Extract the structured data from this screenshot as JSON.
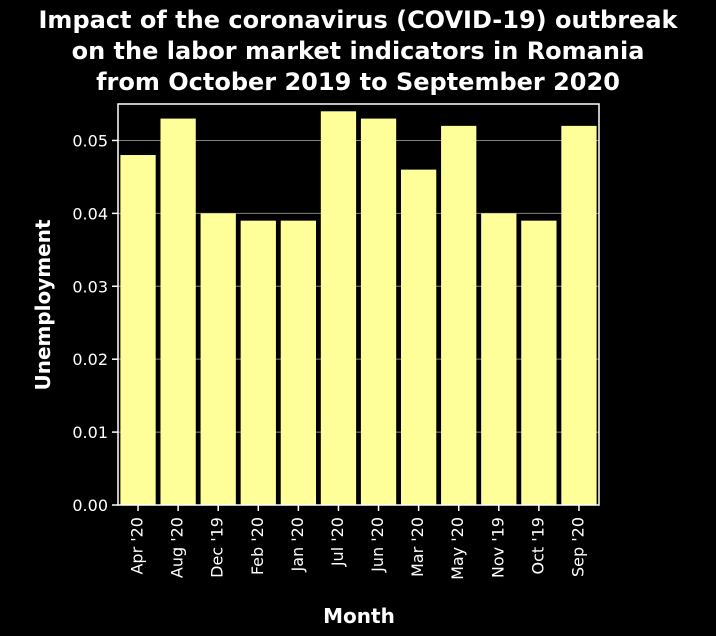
{
  "chart_data": {
    "type": "bar",
    "title_lines": [
      "Impact of the coronavirus (COVID-19) outbreak",
      "on the labor market indicators in Romania",
      "from October 2019 to September 2020"
    ],
    "xlabel": "Month",
    "ylabel": "Unemployment",
    "categories": [
      "Apr '20",
      "Aug '20",
      "Dec '19",
      "Feb '20",
      "Jan '20",
      "Jul '20",
      "Jun '20",
      "Mar '20",
      "May '20",
      "Nov '19",
      "Oct '19",
      "Sep '20"
    ],
    "values": [
      0.048,
      0.053,
      0.04,
      0.039,
      0.039,
      0.054,
      0.053,
      0.046,
      0.052,
      0.04,
      0.039,
      0.052
    ],
    "ylim": [
      0,
      0.055
    ],
    "yticks": [
      "0.00",
      "0.01",
      "0.02",
      "0.03",
      "0.04",
      "0.05"
    ],
    "grid": true,
    "colors": {
      "background": "#000000",
      "bar": "#ffff99",
      "grid": "#7f7f7f",
      "axis": "#ffffff",
      "text": "#ffffff"
    }
  }
}
